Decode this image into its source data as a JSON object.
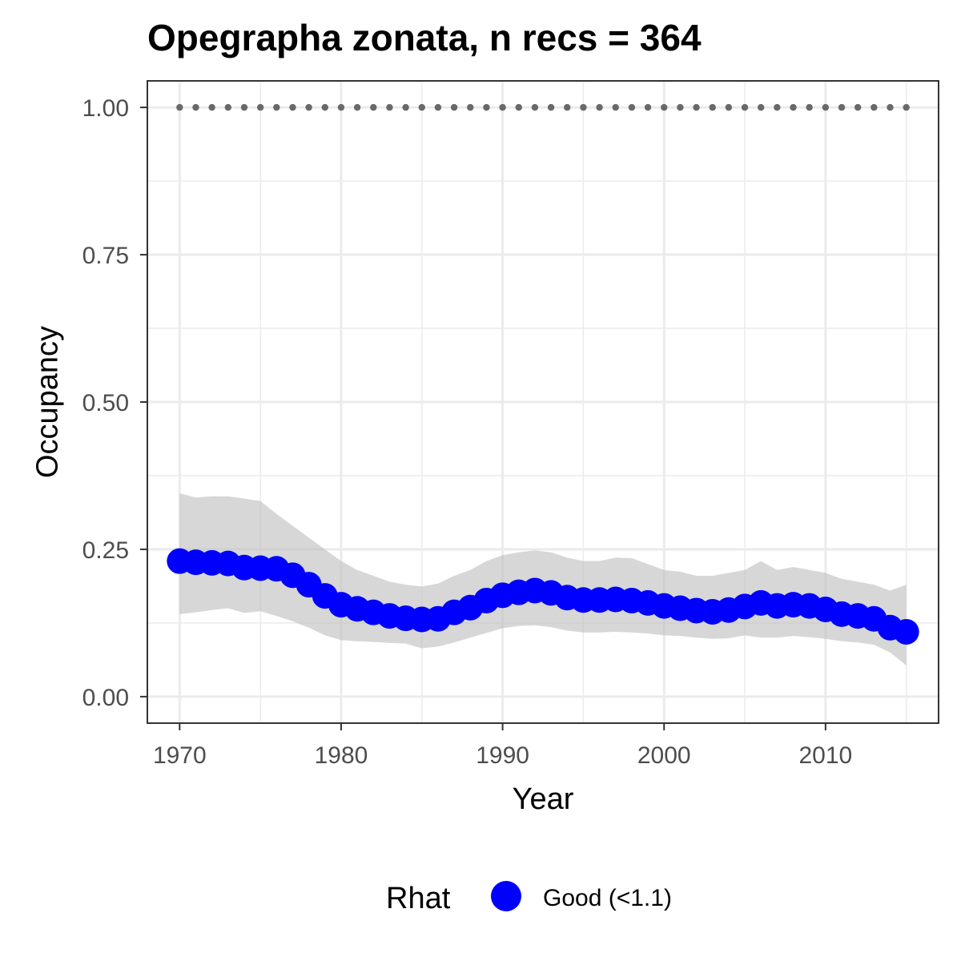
{
  "chart_data": {
    "type": "line",
    "title": "Opegrapha zonata, n recs = 364",
    "xlabel": "Year",
    "ylabel": "Occupancy",
    "xlim": [
      1968,
      2017
    ],
    "ylim": [
      -0.045,
      1.045
    ],
    "x_ticks": [
      1970,
      1980,
      1990,
      2000,
      2010
    ],
    "x_tick_labels": [
      "1970",
      "1980",
      "1990",
      "2000",
      "2010"
    ],
    "x_minor_ticks": [
      1975,
      1985,
      1995,
      2005,
      2015
    ],
    "y_ticks": [
      0,
      0.25,
      0.5,
      0.75,
      1.0
    ],
    "y_tick_labels": [
      "0.00",
      "0.25",
      "0.50",
      "0.75",
      "1.00"
    ],
    "y_minor_ticks": [
      0.125,
      0.375,
      0.625,
      0.875
    ],
    "grid": true,
    "x": [
      1970,
      1971,
      1972,
      1973,
      1974,
      1975,
      1976,
      1977,
      1978,
      1979,
      1980,
      1981,
      1982,
      1983,
      1984,
      1985,
      1986,
      1987,
      1988,
      1989,
      1990,
      1991,
      1992,
      1993,
      1994,
      1995,
      1996,
      1997,
      1998,
      1999,
      2000,
      2001,
      2002,
      2003,
      2004,
      2005,
      2006,
      2007,
      2008,
      2009,
      2010,
      2011,
      2012,
      2013,
      2014,
      2015
    ],
    "series": [
      {
        "legend_group": "Rhat",
        "name": "Good (<1.1)",
        "color": "#0000ff",
        "mean": [
          0.23,
          0.228,
          0.227,
          0.226,
          0.219,
          0.218,
          0.217,
          0.206,
          0.19,
          0.171,
          0.156,
          0.149,
          0.143,
          0.137,
          0.133,
          0.131,
          0.132,
          0.143,
          0.151,
          0.163,
          0.172,
          0.177,
          0.18,
          0.176,
          0.168,
          0.164,
          0.164,
          0.165,
          0.163,
          0.159,
          0.154,
          0.15,
          0.146,
          0.144,
          0.147,
          0.153,
          0.159,
          0.154,
          0.156,
          0.154,
          0.148,
          0.14,
          0.137,
          0.132,
          0.117,
          0.11
        ],
        "lower": [
          0.14,
          0.143,
          0.147,
          0.15,
          0.142,
          0.145,
          0.137,
          0.128,
          0.117,
          0.104,
          0.096,
          0.094,
          0.093,
          0.091,
          0.09,
          0.082,
          0.085,
          0.092,
          0.1,
          0.108,
          0.116,
          0.12,
          0.121,
          0.118,
          0.112,
          0.109,
          0.109,
          0.11,
          0.109,
          0.107,
          0.104,
          0.103,
          0.1,
          0.098,
          0.099,
          0.104,
          0.1,
          0.1,
          0.103,
          0.101,
          0.098,
          0.094,
          0.092,
          0.088,
          0.075,
          0.053
        ],
        "upper": [
          0.345,
          0.338,
          0.34,
          0.34,
          0.336,
          0.332,
          0.31,
          0.29,
          0.27,
          0.25,
          0.23,
          0.215,
          0.205,
          0.195,
          0.19,
          0.187,
          0.192,
          0.205,
          0.215,
          0.23,
          0.24,
          0.245,
          0.248,
          0.245,
          0.236,
          0.23,
          0.23,
          0.236,
          0.235,
          0.225,
          0.215,
          0.212,
          0.205,
          0.205,
          0.21,
          0.215,
          0.23,
          0.215,
          0.22,
          0.215,
          0.21,
          0.2,
          0.195,
          0.19,
          0.18,
          0.19
        ]
      },
      {
        "name": "",
        "style": "dotted",
        "color": "#696969",
        "values": [
          1,
          1,
          1,
          1,
          1,
          1,
          1,
          1,
          1,
          1,
          1,
          1,
          1,
          1,
          1,
          1,
          1,
          1,
          1,
          1,
          1,
          1,
          1,
          1,
          1,
          1,
          1,
          1,
          1,
          1,
          1,
          1,
          1,
          1,
          1,
          1,
          1,
          1,
          1,
          1,
          1,
          1,
          1,
          1,
          1,
          1
        ]
      }
    ],
    "legend": {
      "title": "Rhat",
      "position": "bottom",
      "items": [
        {
          "label": "Good (<1.1)",
          "color": "#0000ff"
        }
      ]
    },
    "colors": {
      "ribbon": "#bebebe",
      "grid": "#ebebeb",
      "panel_border": "#333333",
      "points": "#0000ff",
      "reference_dots": "#696969"
    }
  }
}
